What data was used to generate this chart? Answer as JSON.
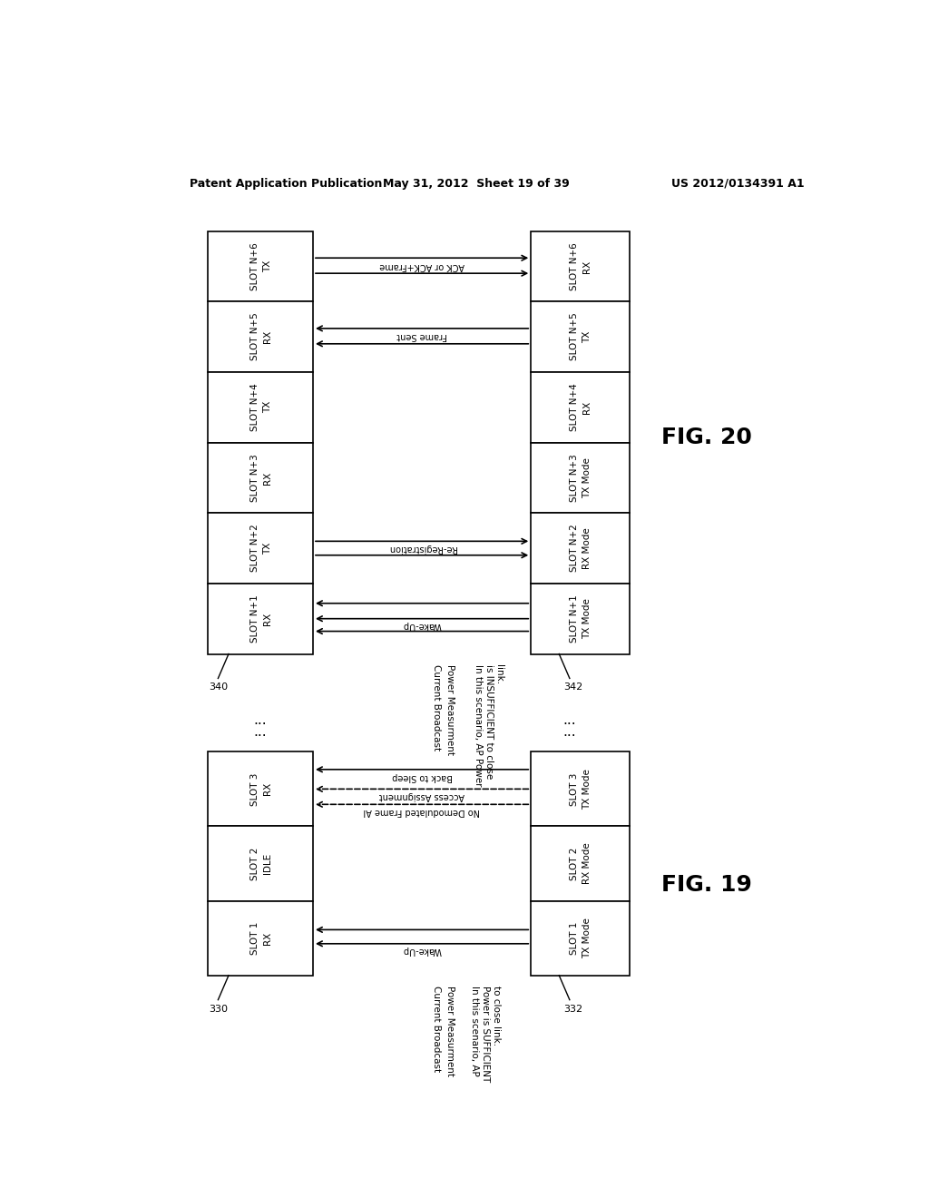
{
  "header_left": "Patent Application Publication",
  "header_mid": "May 31, 2012  Sheet 19 of 39",
  "header_right": "US 2012/0134391 A1",
  "fig19_label": "FIG. 19",
  "fig20_label": "FIG. 20",
  "bg_color": "#ffffff",
  "box_color": "#000000",
  "text_color": "#000000"
}
